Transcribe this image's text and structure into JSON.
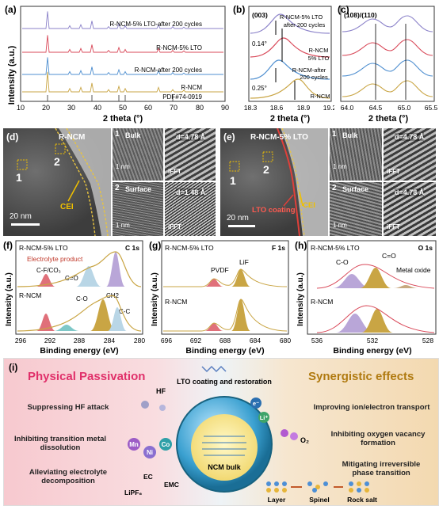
{
  "colors": {
    "nm": "#c9a544",
    "nm200": "#4f8fd0",
    "lto": "#d94a5a",
    "lto200": "#8b82c9",
    "peak": "#e0707a",
    "peak2": "#b9a6d8",
    "peak3": "#b9d6e6",
    "oxide": "#c8a980"
  },
  "panel_a": {
    "label": "(a)",
    "ylabel": "Intensity (a.u.)",
    "xlabel": "2 theta (°)",
    "xticks": [
      "10",
      "20",
      "30",
      "40",
      "50",
      "60",
      "70",
      "80",
      "90"
    ],
    "curves": [
      "R-NCM-5% LTO-after 200 cycles",
      "R-NCM-5% LTO",
      "R-NCM-after 200 cycles",
      "R-NCM"
    ],
    "pdf": "PDF#74-0919"
  },
  "panel_b": {
    "label": "(b)",
    "hkl": "(003)",
    "xlabel": "2 theta (°)",
    "xticks": [
      "18.3",
      "18.6",
      "18.9",
      "19.2"
    ],
    "shift_top": "0.14°",
    "shift_bottom": "0.25°",
    "labels": [
      "R-NCM-5% LTO after 200 cycles",
      "R-NCM 5% LTO",
      "R-NCM-after 200 cycles",
      "R-NCM"
    ]
  },
  "panel_c": {
    "label": "(c)",
    "hkl": "(108)/(110)",
    "xlabel": "2 theta (°)",
    "xticks": [
      "64.0",
      "64.5",
      "65.0",
      "65.5"
    ]
  },
  "panel_d": {
    "label": "(d)",
    "title": "R-NCM",
    "cei": "CEI",
    "scale": "20 nm",
    "scale_small": "1 nm",
    "m1": "1",
    "m2": "2",
    "bulk": "Bulk",
    "surface": "Surface",
    "ifft": "iFFT",
    "d_bulk": "d=4.78 Å",
    "d_surf": "d=1.48 Å"
  },
  "panel_e": {
    "label": "(e)",
    "title": "R-NCM-5% LTO",
    "cei": "CEI",
    "coating": "LTO coating",
    "scale": "20 nm",
    "scale_small": "1 nm",
    "m1": "1",
    "m2": "2",
    "bulk": "Bulk",
    "surface": "Surface",
    "ifft": "iFFT",
    "d_bulk": "d=4.78 Å",
    "d_surf": "d=4.78 Å"
  },
  "panel_f": {
    "label": "(f)",
    "core": "C 1s",
    "sample_top": "R-NCM-5% LTO",
    "note": "Electrolyte product",
    "sample_bottom": "R-NCM",
    "peaks_top": [
      "C-F/CO₃",
      "C=O"
    ],
    "peaks_bottom": [
      "C-O",
      "CH2",
      "C-C"
    ],
    "xticks": [
      "296",
      "292",
      "288",
      "284",
      "280"
    ]
  },
  "panel_g": {
    "label": "(g)",
    "core": "F 1s",
    "sample_top": "R-NCM-5% LTO",
    "sample_bottom": "R-NCM",
    "peaks": [
      "PVDF",
      "LiF"
    ],
    "xticks": [
      "696",
      "692",
      "688",
      "684",
      "680"
    ]
  },
  "panel_h": {
    "label": "(h)",
    "core": "O 1s",
    "sample_top": "R-NCM-5% LTO",
    "sample_bottom": "R-NCM",
    "peaks": [
      "C-O",
      "C=O",
      "Metal oxide"
    ],
    "xticks": [
      "536",
      "532",
      "528"
    ]
  },
  "xps_ylabel": "Intensity (a.u.)",
  "xps_xlabel": "Binding energy (eV)",
  "panel_i": {
    "label": "(i)",
    "left_title": "Physical Passivation",
    "right_title": "Synergistic effects",
    "left_items": [
      "Suppressing HF attack",
      "Inhibiting transition metal dissolution",
      "Alleviating electrolyte decomposition"
    ],
    "right_items": [
      "Improving ion/electron transport",
      "Inhibiting oxygen vacancy formation",
      "Mitigating irreversible phase transition"
    ],
    "center_top": "LTO coating and restoration",
    "core": "NCM bulk",
    "hf": "HF",
    "mn": "Mn",
    "ni": "Ni",
    "co": "Co",
    "ec": "EC",
    "emc": "EMC",
    "lipf6": "LiPF₆",
    "e": "e⁻",
    "li": "Li⁺",
    "o2": "O₂",
    "phases": [
      "Layer",
      "Spinel",
      "Rock salt"
    ]
  }
}
